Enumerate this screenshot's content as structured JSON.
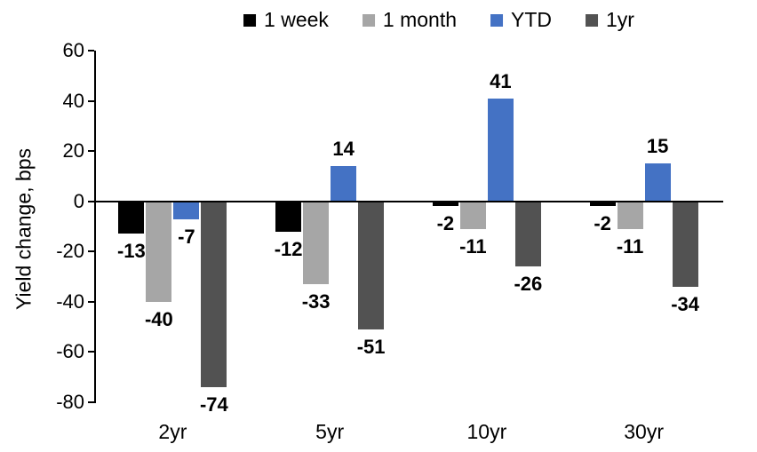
{
  "chart_data": {
    "type": "bar",
    "title": "",
    "xlabel": "",
    "ylabel": "Yield change, bps",
    "categories": [
      "2yr",
      "5yr",
      "10yr",
      "30yr"
    ],
    "series": [
      {
        "name": "1 week",
        "color": "#000000",
        "values": [
          -13,
          -12,
          -2,
          -2
        ]
      },
      {
        "name": "1 month",
        "color": "#A6A6A6",
        "values": [
          -40,
          -33,
          -11,
          -11
        ]
      },
      {
        "name": "YTD",
        "color": "#4472C4",
        "values": [
          -7,
          14,
          41,
          15
        ]
      },
      {
        "name": "1yr",
        "color": "#525252",
        "values": [
          -74,
          -51,
          -26,
          -34
        ]
      }
    ],
    "yticks": [
      60,
      40,
      20,
      0,
      -20,
      -40,
      -60,
      -80
    ],
    "ylim": [
      -80,
      60
    ],
    "grid": false,
    "legend_position": "top-center",
    "axis_color": "#000000",
    "data_labels": true
  }
}
